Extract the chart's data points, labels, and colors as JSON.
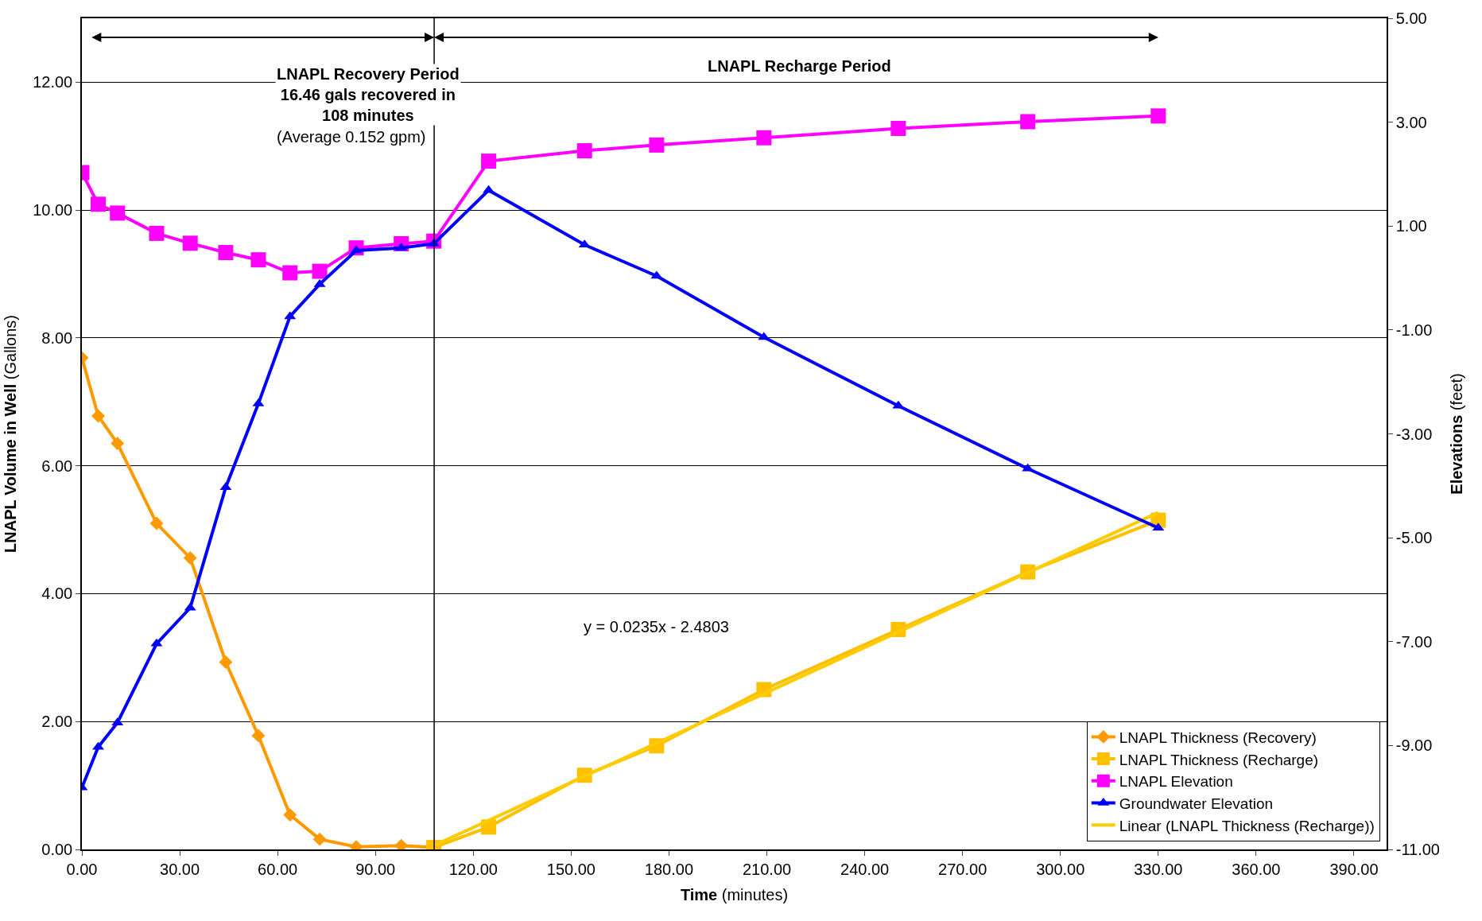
{
  "chart_data": {
    "type": "line",
    "xlabel": "Time (minutes)",
    "ylabel": "LNAPL Volume in Well (Gallons)",
    "y2label": "Elevations (feet)",
    "xlim": [
      0,
      400
    ],
    "xticks": [
      {
        "value": 0,
        "label": "0.00"
      },
      {
        "value": 30,
        "label": "30.00"
      },
      {
        "value": 60,
        "label": "60.00"
      },
      {
        "value": 90,
        "label": "90.00"
      },
      {
        "value": 120,
        "label": "120.00"
      },
      {
        "value": 150,
        "label": "150.00"
      },
      {
        "value": 180,
        "label": "180.00"
      },
      {
        "value": 210,
        "label": "210.00"
      },
      {
        "value": 240,
        "label": "240.00"
      },
      {
        "value": 270,
        "label": "270.00"
      },
      {
        "value": 300,
        "label": "300.00"
      },
      {
        "value": 330,
        "label": "330.00"
      },
      {
        "value": 360,
        "label": "360.00"
      },
      {
        "value": 390,
        "label": "390.00"
      }
    ],
    "ylim": [
      0,
      13
    ],
    "yticks": [
      {
        "value": 0,
        "label": "0.00"
      },
      {
        "value": 2,
        "label": "2.00"
      },
      {
        "value": 4,
        "label": "4.00"
      },
      {
        "value": 6,
        "label": "6.00"
      },
      {
        "value": 8,
        "label": "8.00"
      },
      {
        "value": 10,
        "label": "10.00"
      },
      {
        "value": 12,
        "label": "12.00"
      }
    ],
    "y2lim": [
      -11,
      5
    ],
    "y2ticks": [
      {
        "value": -11,
        "label": "-11.00"
      },
      {
        "value": -9,
        "label": "-9.00"
      },
      {
        "value": -7,
        "label": "-7.00"
      },
      {
        "value": -5,
        "label": "-5.00"
      },
      {
        "value": -3,
        "label": "-3.00"
      },
      {
        "value": -1,
        "label": "-1.00"
      },
      {
        "value": 1,
        "label": "1.00"
      },
      {
        "value": 3,
        "label": "3.00"
      },
      {
        "value": 5,
        "label": "5.00"
      }
    ],
    "grid": "y",
    "legend": "bottom right",
    "line_style": "solid",
    "series": [
      {
        "name": "LNAPL Thickness (Recovery)",
        "color": "#ff9900",
        "marker": "diamond",
        "x": [
          0,
          5,
          10.9,
          22.9,
          33.2,
          44.1,
          54.1,
          63.8,
          72.9,
          84.1,
          97.9,
          107.9
        ],
        "values": [
          7.69,
          6.78,
          6.35,
          5.1,
          4.56,
          2.93,
          1.78,
          0.54,
          0.16,
          0.04,
          0.06,
          0.03
        ]
      },
      {
        "name": "LNAPL Thickness (Recharge)",
        "color": "#ffc000",
        "marker": "square",
        "x": [
          107.9,
          124.7,
          154.1,
          176.2,
          209.1,
          250.3,
          290,
          330
        ],
        "values": [
          0.03,
          0.35,
          1.16,
          1.62,
          2.5,
          3.44,
          4.34,
          5.15
        ]
      },
      {
        "name": "LNAPL Elevation",
        "color": "#ff00ff",
        "marker": "square",
        "axis": "y2",
        "x": [
          0,
          5,
          10.9,
          22.9,
          33.2,
          44.1,
          54.1,
          63.8,
          72.9,
          84.1,
          97.9,
          107.9,
          124.7,
          154.1,
          176.2,
          209.1,
          250.3,
          290,
          330
        ],
        "values": [
          2.03,
          1.42,
          1.25,
          0.86,
          0.67,
          0.49,
          0.35,
          0.1,
          0.13,
          0.58,
          0.66,
          0.71,
          2.25,
          2.45,
          2.56,
          2.7,
          2.88,
          3.01,
          3.12
        ]
      },
      {
        "name": "Groundwater Elevation",
        "color": "#0000ff",
        "marker": "triangle",
        "axis": "y2",
        "x": [
          0,
          5,
          10.9,
          22.9,
          33.2,
          44.1,
          54.1,
          63.8,
          72.9,
          84.1,
          97.9,
          107.9,
          124.7,
          154.1,
          176.2,
          209.1,
          250.3,
          290,
          330
        ],
        "values": [
          -9.81,
          -9.03,
          -8.56,
          -7.04,
          -6.35,
          -4.03,
          -2.42,
          -0.74,
          -0.12,
          0.53,
          0.58,
          0.66,
          1.69,
          0.64,
          0.04,
          -1.14,
          -2.46,
          -3.67,
          -4.81
        ]
      },
      {
        "name": "Linear (LNAPL Thickness (Recharge))",
        "color": "#ffcc00",
        "marker": "none",
        "x": [
          107.9,
          330
        ],
        "values": [
          0.06,
          5.27
        ]
      }
    ],
    "ref_lines": [
      {
        "axis": "x",
        "value": 108,
        "color": "#000000",
        "line_style": "solid"
      }
    ],
    "annotations": [
      "LNAPL Recovery Period 16.46 gals recovered in 108 minutes",
      "(Average 0.152 gpm)",
      "LNAPL Recharge Period",
      "y = 0.0235x - 2.4803"
    ]
  }
}
